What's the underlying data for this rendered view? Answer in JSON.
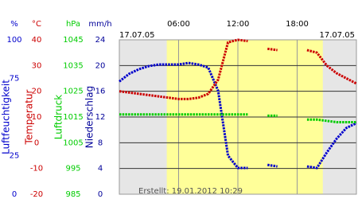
{
  "chart_data": {
    "type": "line",
    "dates": [
      "17.07.05",
      "17.07.05"
    ],
    "footnote": "Erstellt: 19.01.2012 10:29",
    "xlim": [
      0,
      24
    ],
    "xticks": [
      {
        "value": 6,
        "label": "06:00"
      },
      {
        "value": 12,
        "label": "12:00"
      },
      {
        "value": 18,
        "label": "18:00"
      }
    ],
    "daylight": [
      4.8,
      20.6
    ],
    "grid": true,
    "axes": [
      {
        "unit": "%",
        "title": "Luftfeuchtigkeit",
        "color": "#0000cc",
        "ylim": [
          0,
          100
        ],
        "yticks": [
          0,
          25,
          75,
          100
        ]
      },
      {
        "unit": "°C",
        "title": "Temperatur",
        "color": "#cc0000",
        "ylim": [
          -20,
          40
        ],
        "yticks": [
          -20,
          -10,
          0,
          10,
          20,
          30,
          40
        ]
      },
      {
        "unit": "hPa",
        "title": "Luftdruck",
        "color": "#00cc00",
        "ylim": [
          985,
          1045
        ],
        "yticks": [
          985,
          995,
          1005,
          1015,
          1025,
          1035,
          1045
        ]
      },
      {
        "unit": "mm/h",
        "title": "Niederschlag",
        "color": "#000099",
        "ylim": [
          0,
          24
        ],
        "yticks": [
          0,
          4,
          8,
          12,
          16,
          20,
          24
        ]
      }
    ],
    "x": [
      0,
      1,
      2,
      3,
      4,
      5,
      6,
      7,
      8,
      9,
      10,
      11,
      12,
      13,
      14,
      15,
      16,
      17,
      18,
      19,
      20,
      21,
      22,
      23,
      24
    ],
    "series": [
      {
        "axis": 0,
        "color": "#0000cc",
        "values": [
          73,
          78,
          81,
          83,
          84,
          84,
          84,
          85,
          84,
          82,
          67,
          25,
          17,
          17,
          null,
          19,
          18,
          null,
          null,
          18,
          17,
          27,
          36,
          43,
          46
        ]
      },
      {
        "axis": 1,
        "color": "#cc0000",
        "values": [
          20,
          19.5,
          19,
          18.5,
          18,
          17.5,
          17,
          17,
          17.5,
          19,
          24.5,
          39,
          40,
          39.5,
          null,
          36.5,
          36,
          null,
          null,
          36,
          35,
          30,
          27,
          25,
          23
        ]
      },
      {
        "axis": 2,
        "color": "#00cc00",
        "values": [
          1016,
          1016,
          1016,
          1016,
          1016,
          1016,
          1016,
          1016,
          1016,
          1016,
          1016,
          1016,
          1016,
          1016,
          null,
          1015.5,
          1015.5,
          null,
          null,
          1014,
          1014,
          1013.5,
          1013,
          1013,
          1013
        ]
      }
    ]
  }
}
